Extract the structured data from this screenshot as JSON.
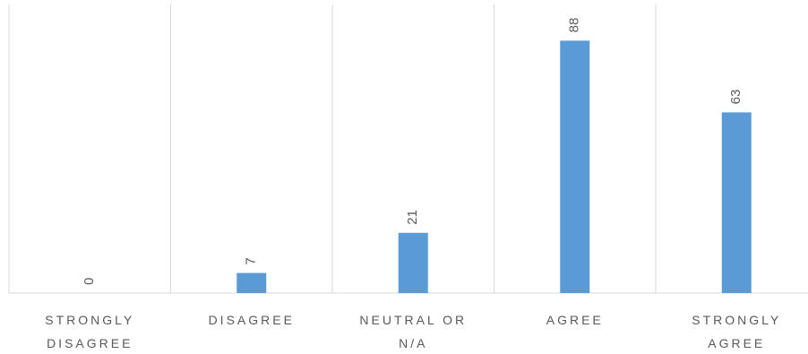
{
  "chart_data": {
    "type": "bar",
    "categories": [
      "STRONGLY DISAGREE",
      "DISAGREE",
      "NEUTRAL OR N/A",
      "AGREE",
      "STRONGLY AGREE"
    ],
    "values": [
      0,
      7,
      21,
      88,
      63
    ],
    "color": "#5b9bd5",
    "ylim": [
      0,
      100
    ],
    "grid": true
  }
}
